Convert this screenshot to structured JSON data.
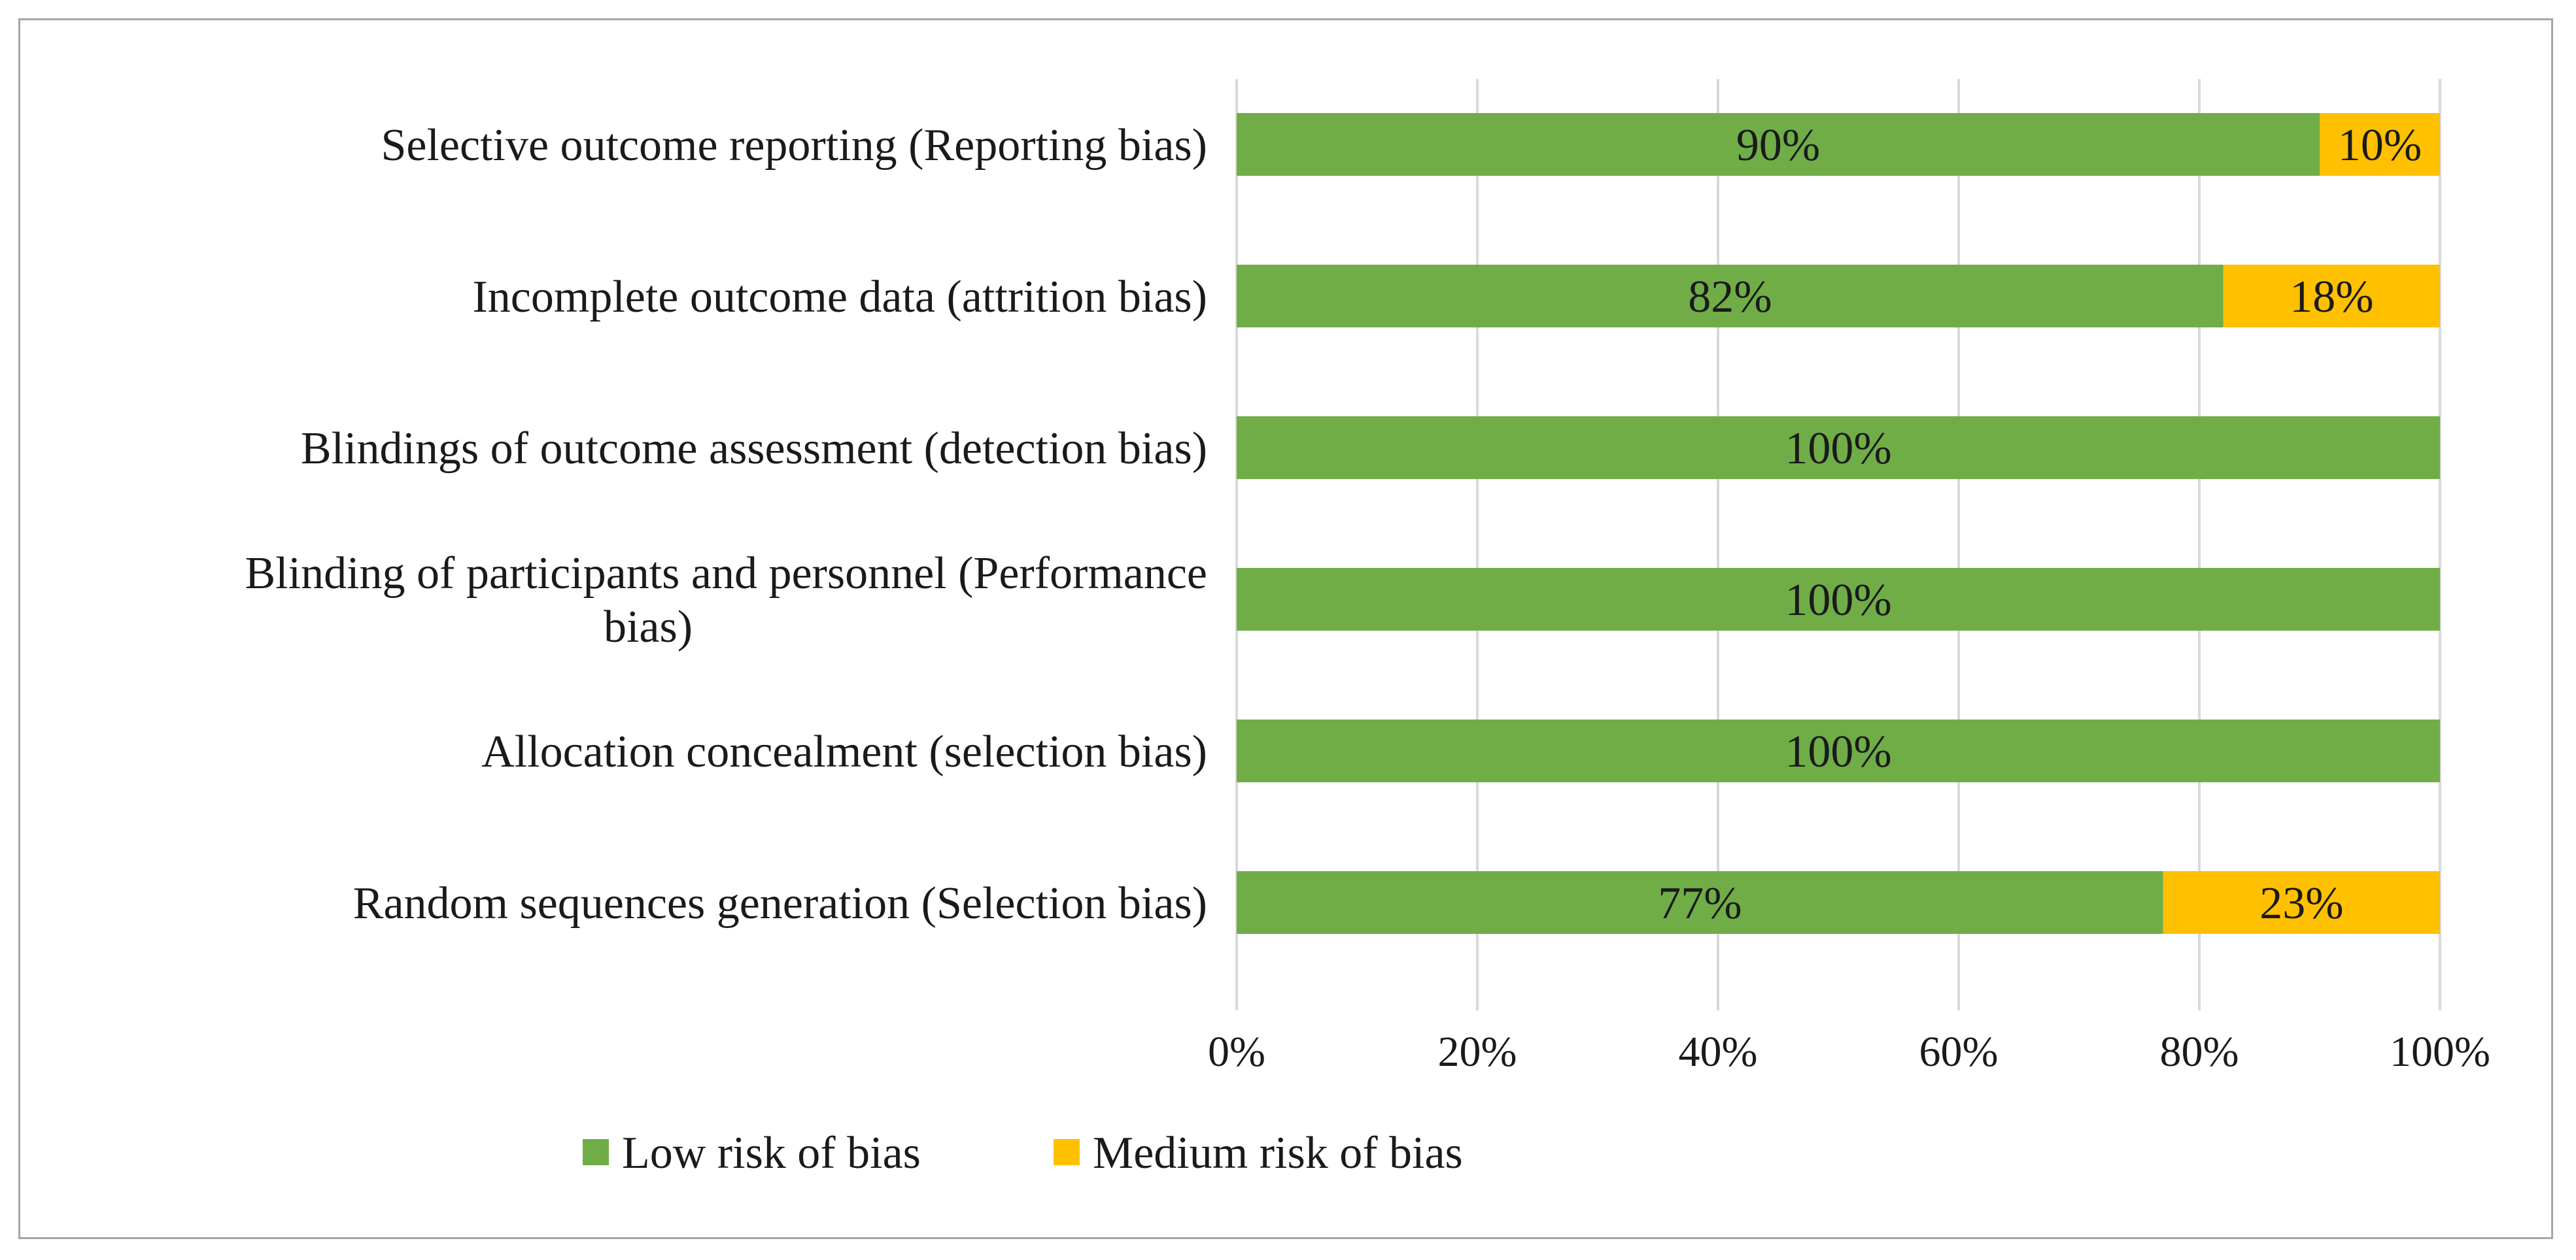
{
  "chart_data": {
    "type": "bar",
    "orientation": "horizontal",
    "stacked": true,
    "percent_stacked": true,
    "categories": [
      "Selective outcome reporting (Reporting bias)",
      "Incomplete outcome data (attrition bias)",
      "Blindings of outcome assessment (detection bias)",
      "Blinding of participants and personnel (Performance bias)",
      "Allocation concealment (selection bias)",
      "Random sequences generation (Selection bias)"
    ],
    "category_label_lines": [
      [
        "Selective outcome reporting (Reporting bias)"
      ],
      [
        "Incomplete outcome data (attrition bias)"
      ],
      [
        "Blindings of outcome assessment (detection bias)"
      ],
      [
        "Blinding of participants and personnel (Performance",
        "bias)"
      ],
      [
        "Allocation concealment (selection bias)"
      ],
      [
        "Random sequences generation (Selection bias)"
      ]
    ],
    "series": [
      {
        "name": "Low risk of bias",
        "color": "#70ad47",
        "values": [
          90,
          82,
          100,
          100,
          100,
          77
        ],
        "labels": [
          "90%",
          "82%",
          "100%",
          "100%",
          "100%",
          "77%"
        ]
      },
      {
        "name": "Medium risk of bias",
        "color": "#ffc000",
        "values": [
          10,
          18,
          0,
          0,
          0,
          23
        ],
        "labels": [
          "10%",
          "18%",
          "",
          "",
          "",
          "23%"
        ]
      }
    ],
    "x_ticks": [
      "0%",
      "20%",
      "40%",
      "60%",
      "80%",
      "100%"
    ],
    "xlim": [
      0,
      100
    ],
    "grid": true,
    "legend_position": "bottom"
  }
}
